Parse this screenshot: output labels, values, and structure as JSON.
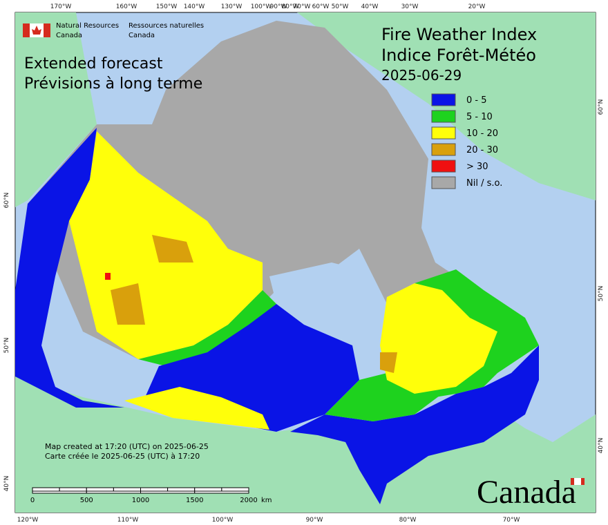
{
  "header": {
    "agency_en": "Natural Resources",
    "agency_en_2": "Canada",
    "agency_fr": "Ressources naturelles",
    "agency_fr_2": "Canada"
  },
  "subtitle": [
    "Extended forecast",
    "Prévisions à long terme"
  ],
  "title": [
    "Fire Weather Index",
    "Indice Forêt-Météo"
  ],
  "date": "2025-06-29",
  "legend": [
    {
      "label": "0 - 5",
      "color": "#0a14e6"
    },
    {
      "label": "5 - 10",
      "color": "#1ed21e"
    },
    {
      "label": "10 - 20",
      "color": "#ffff0a"
    },
    {
      "label": "20 - 30",
      "color": "#d9a00c"
    },
    {
      "label": "> 30",
      "color": "#f01010"
    },
    {
      "label": "Nil / s.o.",
      "color": "#a8a8a8"
    }
  ],
  "top_labels": [
    "170°W",
    "160°W",
    "150°W",
    "140°W",
    "130°W",
    "100°W",
    "90°W",
    "80°W",
    "70°W",
    "60°W",
    "50°W",
    "40°W",
    "30°W",
    "20°W"
  ],
  "bottom_labels": [
    "120°W",
    "110°W",
    "100°W",
    "90°W",
    "80°W",
    "70°W"
  ],
  "left_labels": [
    "60°N",
    "50°N",
    "40°N"
  ],
  "right_labels": [
    "60°N",
    "50°N",
    "40°N"
  ],
  "scale": {
    "ticks": [
      0,
      500,
      1000,
      1500,
      2000
    ],
    "unit": "km"
  },
  "credits": [
    "Map created at 17:20 (UTC) on 2025-06-25",
    "Carte créée le 2025-06-25 (UTC) à 17:20"
  ],
  "wordmark": "Canada"
}
